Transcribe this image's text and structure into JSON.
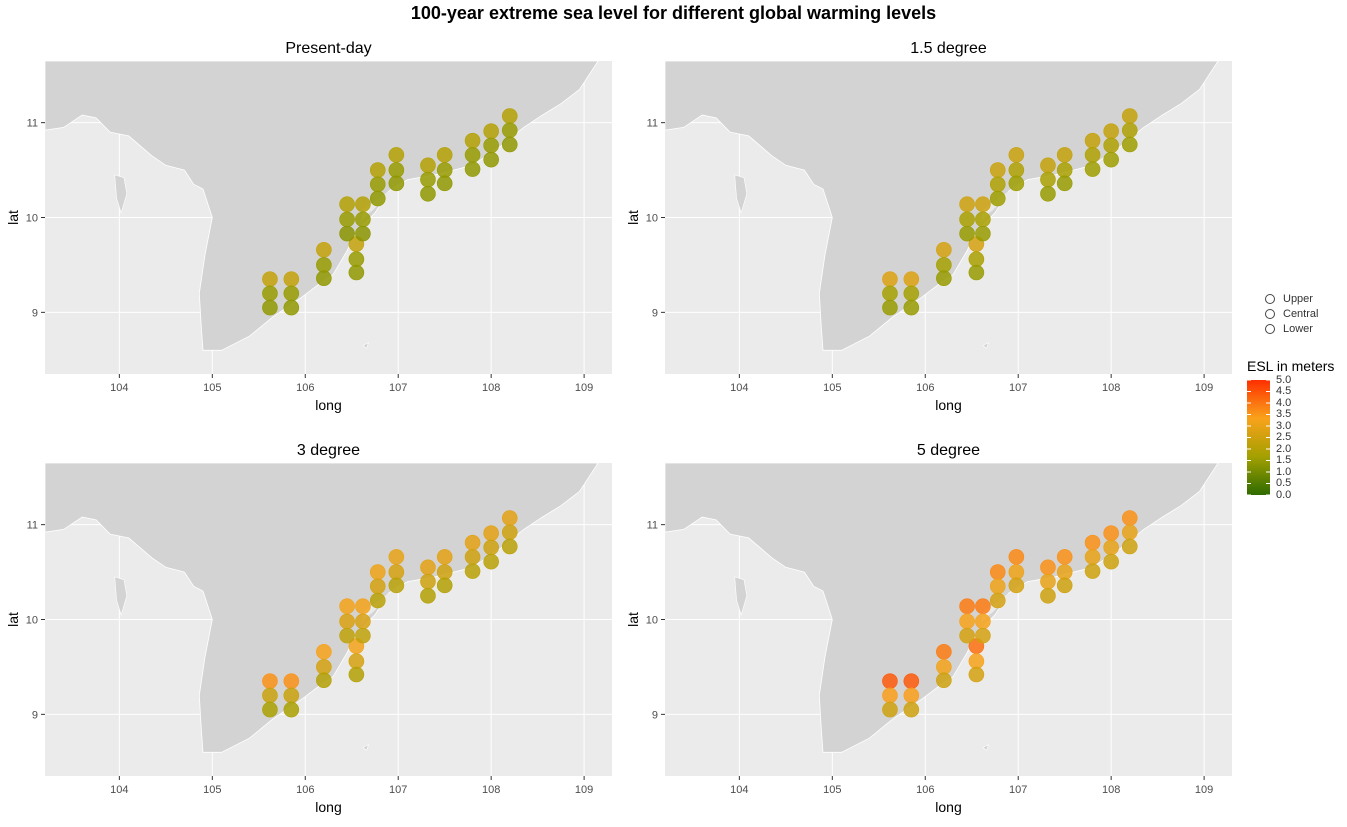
{
  "title": "100-year extreme sea level for different global warming levels",
  "axis_labels": {
    "x": "long",
    "y": "lat"
  },
  "legend": {
    "shape_items": [
      "Upper",
      "Central",
      "Lower"
    ],
    "colorbar_title": "ESL in meters",
    "colorbar_ticks": [
      "5.0",
      "4.5",
      "4.0",
      "3.5",
      "3.0",
      "2.5",
      "2.0",
      "1.5",
      "1.0",
      "0.5",
      "0.0"
    ],
    "color_stops": [
      "#2e6b00",
      "#a3a000",
      "#f9a21b",
      "#ff3000"
    ]
  },
  "chart_data": [
    {
      "type": "scatter",
      "title": "Present-day",
      "xlabel": "long",
      "ylabel": "lat",
      "xlim": [
        103.2,
        109.3
      ],
      "ylim": [
        8.35,
        11.65
      ],
      "x_ticks": [
        104,
        105,
        106,
        107,
        108,
        109
      ],
      "y_ticks": [
        9,
        10,
        11
      ],
      "grid": true,
      "points": [
        {
          "x": 105.62,
          "y": 9.35,
          "esl": 2.3
        },
        {
          "x": 105.62,
          "y": 9.2,
          "esl": 1.5
        },
        {
          "x": 105.62,
          "y": 9.05,
          "esl": 1.4
        },
        {
          "x": 105.85,
          "y": 9.35,
          "esl": 2.3
        },
        {
          "x": 105.85,
          "y": 9.2,
          "esl": 1.5
        },
        {
          "x": 105.85,
          "y": 9.05,
          "esl": 1.4
        },
        {
          "x": 106.2,
          "y": 9.66,
          "esl": 2.3
        },
        {
          "x": 106.2,
          "y": 9.5,
          "esl": 1.5
        },
        {
          "x": 106.2,
          "y": 9.36,
          "esl": 1.4
        },
        {
          "x": 106.55,
          "y": 9.72,
          "esl": 2.3
        },
        {
          "x": 106.55,
          "y": 9.56,
          "esl": 1.5
        },
        {
          "x": 106.55,
          "y": 9.42,
          "esl": 1.4
        },
        {
          "x": 106.45,
          "y": 10.14,
          "esl": 2.0
        },
        {
          "x": 106.45,
          "y": 9.98,
          "esl": 1.5
        },
        {
          "x": 106.45,
          "y": 9.83,
          "esl": 1.3
        },
        {
          "x": 106.62,
          "y": 10.14,
          "esl": 2.0
        },
        {
          "x": 106.62,
          "y": 9.98,
          "esl": 1.5
        },
        {
          "x": 106.62,
          "y": 9.83,
          "esl": 1.3
        },
        {
          "x": 106.78,
          "y": 10.5,
          "esl": 2.0
        },
        {
          "x": 106.78,
          "y": 10.35,
          "esl": 1.5
        },
        {
          "x": 106.78,
          "y": 10.2,
          "esl": 1.4
        },
        {
          "x": 106.98,
          "y": 10.66,
          "esl": 2.0
        },
        {
          "x": 106.98,
          "y": 10.5,
          "esl": 1.5
        },
        {
          "x": 106.98,
          "y": 10.36,
          "esl": 1.4
        },
        {
          "x": 107.32,
          "y": 10.55,
          "esl": 2.0
        },
        {
          "x": 107.32,
          "y": 10.4,
          "esl": 1.5
        },
        {
          "x": 107.32,
          "y": 10.25,
          "esl": 1.4
        },
        {
          "x": 107.5,
          "y": 10.66,
          "esl": 2.0
        },
        {
          "x": 107.5,
          "y": 10.5,
          "esl": 1.5
        },
        {
          "x": 107.5,
          "y": 10.36,
          "esl": 1.4
        },
        {
          "x": 107.8,
          "y": 10.81,
          "esl": 2.0
        },
        {
          "x": 107.8,
          "y": 10.66,
          "esl": 1.5
        },
        {
          "x": 107.8,
          "y": 10.51,
          "esl": 1.4
        },
        {
          "x": 108.0,
          "y": 10.91,
          "esl": 2.0
        },
        {
          "x": 108.0,
          "y": 10.76,
          "esl": 1.5
        },
        {
          "x": 108.0,
          "y": 10.61,
          "esl": 1.4
        },
        {
          "x": 108.2,
          "y": 11.07,
          "esl": 2.0
        },
        {
          "x": 108.2,
          "y": 10.92,
          "esl": 1.5
        },
        {
          "x": 108.2,
          "y": 10.77,
          "esl": 1.4
        }
      ]
    },
    {
      "type": "scatter",
      "title": "1.5 degree",
      "xlabel": "long",
      "ylabel": "lat",
      "xlim": [
        103.2,
        109.3
      ],
      "ylim": [
        8.35,
        11.65
      ],
      "x_ticks": [
        104,
        105,
        106,
        107,
        108,
        109
      ],
      "y_ticks": [
        9,
        10,
        11
      ],
      "grid": true,
      "points": [
        {
          "x": 105.62,
          "y": 9.35,
          "esl": 2.8
        },
        {
          "x": 105.62,
          "y": 9.2,
          "esl": 1.7
        },
        {
          "x": 105.62,
          "y": 9.05,
          "esl": 1.5
        },
        {
          "x": 105.85,
          "y": 9.35,
          "esl": 2.8
        },
        {
          "x": 105.85,
          "y": 9.2,
          "esl": 1.7
        },
        {
          "x": 105.85,
          "y": 9.05,
          "esl": 1.5
        },
        {
          "x": 106.2,
          "y": 9.66,
          "esl": 2.6
        },
        {
          "x": 106.2,
          "y": 9.5,
          "esl": 1.7
        },
        {
          "x": 106.2,
          "y": 9.36,
          "esl": 1.5
        },
        {
          "x": 106.55,
          "y": 9.72,
          "esl": 2.6
        },
        {
          "x": 106.55,
          "y": 9.56,
          "esl": 1.8
        },
        {
          "x": 106.55,
          "y": 9.42,
          "esl": 1.5
        },
        {
          "x": 106.45,
          "y": 10.14,
          "esl": 2.5
        },
        {
          "x": 106.45,
          "y": 9.98,
          "esl": 1.8
        },
        {
          "x": 106.45,
          "y": 9.83,
          "esl": 1.5
        },
        {
          "x": 106.62,
          "y": 10.14,
          "esl": 2.5
        },
        {
          "x": 106.62,
          "y": 9.98,
          "esl": 1.8
        },
        {
          "x": 106.62,
          "y": 9.83,
          "esl": 1.5
        },
        {
          "x": 106.78,
          "y": 10.5,
          "esl": 2.4
        },
        {
          "x": 106.78,
          "y": 10.35,
          "esl": 1.9
        },
        {
          "x": 106.78,
          "y": 10.2,
          "esl": 1.6
        },
        {
          "x": 106.98,
          "y": 10.66,
          "esl": 2.4
        },
        {
          "x": 106.98,
          "y": 10.5,
          "esl": 1.9
        },
        {
          "x": 106.98,
          "y": 10.36,
          "esl": 1.6
        },
        {
          "x": 107.32,
          "y": 10.55,
          "esl": 2.3
        },
        {
          "x": 107.32,
          "y": 10.4,
          "esl": 1.8
        },
        {
          "x": 107.32,
          "y": 10.25,
          "esl": 1.5
        },
        {
          "x": 107.5,
          "y": 10.66,
          "esl": 2.3
        },
        {
          "x": 107.5,
          "y": 10.5,
          "esl": 1.8
        },
        {
          "x": 107.5,
          "y": 10.36,
          "esl": 1.5
        },
        {
          "x": 107.8,
          "y": 10.81,
          "esl": 2.3
        },
        {
          "x": 107.8,
          "y": 10.66,
          "esl": 1.9
        },
        {
          "x": 107.8,
          "y": 10.51,
          "esl": 1.6
        },
        {
          "x": 108.0,
          "y": 10.91,
          "esl": 2.3
        },
        {
          "x": 108.0,
          "y": 10.76,
          "esl": 1.9
        },
        {
          "x": 108.0,
          "y": 10.61,
          "esl": 1.6
        },
        {
          "x": 108.2,
          "y": 11.07,
          "esl": 2.3
        },
        {
          "x": 108.2,
          "y": 10.92,
          "esl": 1.9
        },
        {
          "x": 108.2,
          "y": 10.77,
          "esl": 1.6
        }
      ]
    },
    {
      "type": "scatter",
      "title": "3 degree",
      "xlabel": "long",
      "ylabel": "lat",
      "xlim": [
        103.2,
        109.3
      ],
      "ylim": [
        8.35,
        11.65
      ],
      "x_ticks": [
        104,
        105,
        106,
        107,
        108,
        109
      ],
      "y_ticks": [
        9,
        10,
        11
      ],
      "grid": true,
      "points": [
        {
          "x": 105.62,
          "y": 9.35,
          "esl": 3.6
        },
        {
          "x": 105.62,
          "y": 9.2,
          "esl": 2.4
        },
        {
          "x": 105.62,
          "y": 9.05,
          "esl": 1.8
        },
        {
          "x": 105.85,
          "y": 9.35,
          "esl": 3.6
        },
        {
          "x": 105.85,
          "y": 9.2,
          "esl": 2.4
        },
        {
          "x": 105.85,
          "y": 9.05,
          "esl": 1.8
        },
        {
          "x": 106.2,
          "y": 9.66,
          "esl": 3.3
        },
        {
          "x": 106.2,
          "y": 9.5,
          "esl": 2.6
        },
        {
          "x": 106.2,
          "y": 9.36,
          "esl": 2.0
        },
        {
          "x": 106.55,
          "y": 9.72,
          "esl": 3.2
        },
        {
          "x": 106.55,
          "y": 9.56,
          "esl": 2.6
        },
        {
          "x": 106.55,
          "y": 9.42,
          "esl": 2.0
        },
        {
          "x": 106.45,
          "y": 10.14,
          "esl": 3.2
        },
        {
          "x": 106.45,
          "y": 9.98,
          "esl": 2.7
        },
        {
          "x": 106.45,
          "y": 9.83,
          "esl": 2.2
        },
        {
          "x": 106.62,
          "y": 10.14,
          "esl": 3.2
        },
        {
          "x": 106.62,
          "y": 9.98,
          "esl": 2.7
        },
        {
          "x": 106.62,
          "y": 9.83,
          "esl": 2.2
        },
        {
          "x": 106.78,
          "y": 10.5,
          "esl": 3.1
        },
        {
          "x": 106.78,
          "y": 10.35,
          "esl": 2.6
        },
        {
          "x": 106.78,
          "y": 10.2,
          "esl": 2.1
        },
        {
          "x": 106.98,
          "y": 10.66,
          "esl": 3.0
        },
        {
          "x": 106.98,
          "y": 10.5,
          "esl": 2.6
        },
        {
          "x": 106.98,
          "y": 10.36,
          "esl": 2.1
        },
        {
          "x": 107.32,
          "y": 10.55,
          "esl": 2.9
        },
        {
          "x": 107.32,
          "y": 10.4,
          "esl": 2.5
        },
        {
          "x": 107.32,
          "y": 10.25,
          "esl": 2.0
        },
        {
          "x": 107.5,
          "y": 10.66,
          "esl": 2.9
        },
        {
          "x": 107.5,
          "y": 10.5,
          "esl": 2.5
        },
        {
          "x": 107.5,
          "y": 10.36,
          "esl": 2.0
        },
        {
          "x": 107.8,
          "y": 10.81,
          "esl": 2.9
        },
        {
          "x": 107.8,
          "y": 10.66,
          "esl": 2.5
        },
        {
          "x": 107.8,
          "y": 10.51,
          "esl": 2.1
        },
        {
          "x": 108.0,
          "y": 10.91,
          "esl": 2.9
        },
        {
          "x": 108.0,
          "y": 10.76,
          "esl": 2.5
        },
        {
          "x": 108.0,
          "y": 10.61,
          "esl": 2.1
        },
        {
          "x": 108.2,
          "y": 11.07,
          "esl": 2.9
        },
        {
          "x": 108.2,
          "y": 10.92,
          "esl": 2.5
        },
        {
          "x": 108.2,
          "y": 10.77,
          "esl": 2.1
        }
      ]
    },
    {
      "type": "scatter",
      "title": "5 degree",
      "xlabel": "long",
      "ylabel": "lat",
      "xlim": [
        103.2,
        109.3
      ],
      "ylim": [
        8.35,
        11.65
      ],
      "x_ticks": [
        104,
        105,
        106,
        107,
        108,
        109
      ],
      "y_ticks": [
        9,
        10,
        11
      ],
      "grid": true,
      "points": [
        {
          "x": 105.62,
          "y": 9.35,
          "esl": 4.4
        },
        {
          "x": 105.62,
          "y": 9.2,
          "esl": 3.4
        },
        {
          "x": 105.62,
          "y": 9.05,
          "esl": 2.5
        },
        {
          "x": 105.85,
          "y": 9.35,
          "esl": 4.4
        },
        {
          "x": 105.85,
          "y": 9.2,
          "esl": 3.4
        },
        {
          "x": 105.85,
          "y": 9.05,
          "esl": 2.5
        },
        {
          "x": 106.2,
          "y": 9.66,
          "esl": 3.9
        },
        {
          "x": 106.2,
          "y": 9.5,
          "esl": 3.2
        },
        {
          "x": 106.2,
          "y": 9.36,
          "esl": 2.5
        },
        {
          "x": 106.55,
          "y": 9.72,
          "esl": 4.1
        },
        {
          "x": 106.55,
          "y": 9.56,
          "esl": 3.3
        },
        {
          "x": 106.55,
          "y": 9.42,
          "esl": 2.6
        },
        {
          "x": 106.45,
          "y": 10.14,
          "esl": 3.9
        },
        {
          "x": 106.45,
          "y": 9.98,
          "esl": 3.3
        },
        {
          "x": 106.45,
          "y": 9.83,
          "esl": 2.6
        },
        {
          "x": 106.62,
          "y": 10.14,
          "esl": 3.9
        },
        {
          "x": 106.62,
          "y": 9.98,
          "esl": 3.3
        },
        {
          "x": 106.62,
          "y": 9.83,
          "esl": 2.6
        },
        {
          "x": 106.78,
          "y": 10.5,
          "esl": 3.7
        },
        {
          "x": 106.78,
          "y": 10.35,
          "esl": 3.1
        },
        {
          "x": 106.78,
          "y": 10.2,
          "esl": 2.6
        },
        {
          "x": 106.98,
          "y": 10.66,
          "esl": 3.7
        },
        {
          "x": 106.98,
          "y": 10.5,
          "esl": 3.1
        },
        {
          "x": 106.98,
          "y": 10.36,
          "esl": 2.6
        },
        {
          "x": 107.32,
          "y": 10.55,
          "esl": 3.6
        },
        {
          "x": 107.32,
          "y": 10.4,
          "esl": 3.0
        },
        {
          "x": 107.32,
          "y": 10.25,
          "esl": 2.5
        },
        {
          "x": 107.5,
          "y": 10.66,
          "esl": 3.6
        },
        {
          "x": 107.5,
          "y": 10.5,
          "esl": 3.0
        },
        {
          "x": 107.5,
          "y": 10.36,
          "esl": 2.5
        },
        {
          "x": 107.8,
          "y": 10.81,
          "esl": 3.6
        },
        {
          "x": 107.8,
          "y": 10.66,
          "esl": 3.0
        },
        {
          "x": 107.8,
          "y": 10.51,
          "esl": 2.5
        },
        {
          "x": 108.0,
          "y": 10.91,
          "esl": 3.6
        },
        {
          "x": 108.0,
          "y": 10.76,
          "esl": 3.0
        },
        {
          "x": 108.0,
          "y": 10.61,
          "esl": 2.5
        },
        {
          "x": 108.2,
          "y": 11.07,
          "esl": 3.6
        },
        {
          "x": 108.2,
          "y": 10.92,
          "esl": 3.0
        },
        {
          "x": 108.2,
          "y": 10.77,
          "esl": 2.5
        }
      ]
    }
  ]
}
